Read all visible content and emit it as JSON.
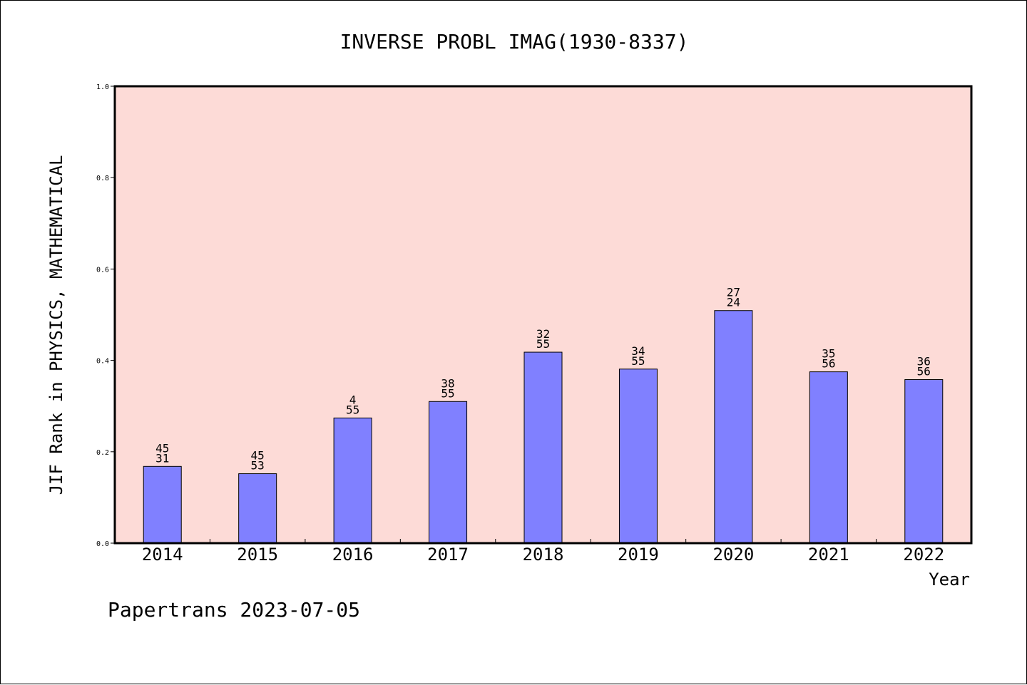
{
  "chart_data": {
    "type": "bar",
    "title": "INVERSE PROBL IMAG(1930-8337)",
    "xlabel": "Year",
    "ylabel": "JIF Rank in PHYSICS, MATHEMATICAL",
    "ylim": [
      0,
      1.0
    ],
    "yticks": [
      "0.0",
      "0.2",
      "0.4",
      "0.6",
      "0.8",
      "1.0"
    ],
    "categories": [
      "2014",
      "2015",
      "2016",
      "2017",
      "2018",
      "2019",
      "2020",
      "2021",
      "2022"
    ],
    "values": [
      0.168,
      0.152,
      0.274,
      0.31,
      0.418,
      0.381,
      0.509,
      0.375,
      0.358
    ],
    "label_top": [
      "45",
      "45",
      "4",
      "38",
      "32",
      "34",
      "27",
      "35",
      "36"
    ],
    "label_bottom": [
      "31",
      "53",
      "55",
      "55",
      "55",
      "55",
      "24",
      "56",
      "56"
    ],
    "grid": false,
    "legend": "none",
    "colors": {
      "plot_background": "#FDDBD7",
      "bar_fill": "#8080FF",
      "bar_stroke": "#000000",
      "axis": "#000000"
    }
  },
  "footer": {
    "text": "Papertrans 2023-07-05"
  }
}
